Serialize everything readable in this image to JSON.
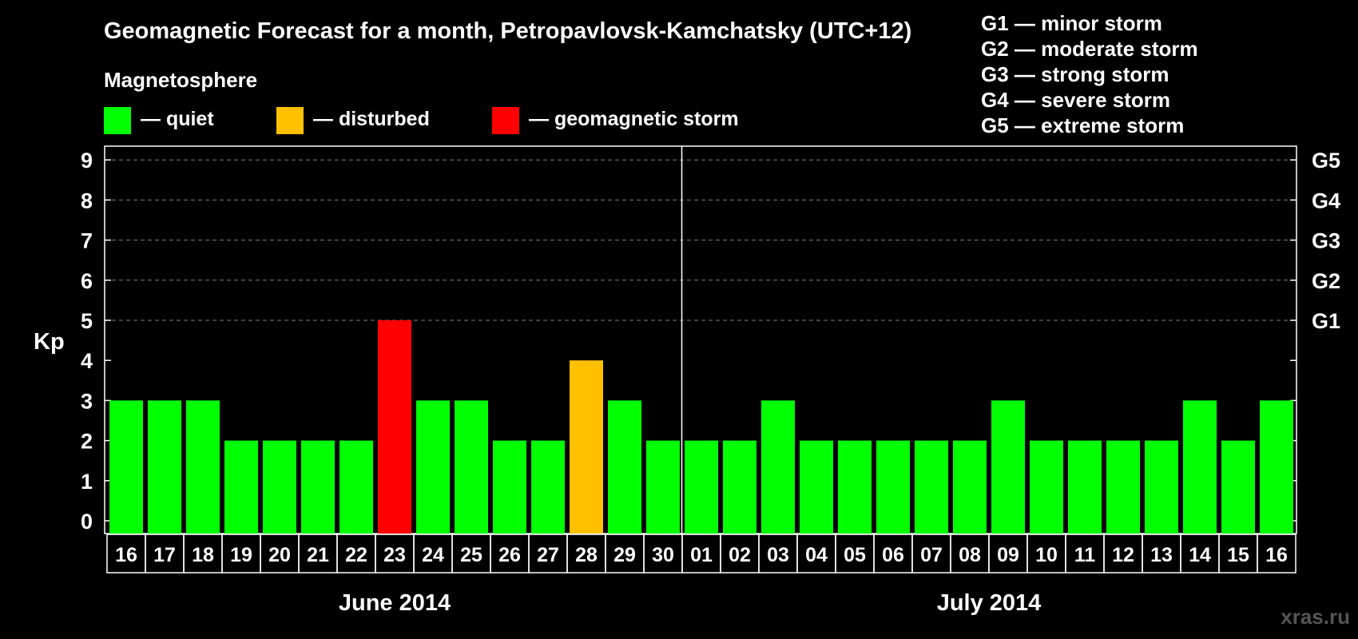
{
  "chart_data": {
    "type": "bar",
    "title": "Geomagnetic Forecast for a month, Petropavlovsk-Kamchatsky (UTC+12)",
    "legend_title": "Magnetosphere",
    "legend": [
      {
        "label": "— quiet",
        "color": "#00ff00"
      },
      {
        "label": "— disturbed",
        "color": "#ffc000"
      },
      {
        "label": "— geomagnetic storm",
        "color": "#ff0000"
      }
    ],
    "storm_scale": [
      "G1 — minor storm",
      "G2 — moderate storm",
      "G3 — strong storm",
      "G4 — severe storm",
      "G5 — extreme storm"
    ],
    "ylabel": "Kp",
    "ylim": [
      0,
      9
    ],
    "yticks": [
      "0",
      "1",
      "2",
      "3",
      "4",
      "5",
      "6",
      "7",
      "8",
      "9"
    ],
    "right_ticks": [
      {
        "value": 5,
        "label": "G1"
      },
      {
        "value": 6,
        "label": "G2"
      },
      {
        "value": 7,
        "label": "G3"
      },
      {
        "value": 8,
        "label": "G4"
      },
      {
        "value": 9,
        "label": "G5"
      }
    ],
    "categories": [
      "16",
      "17",
      "18",
      "19",
      "20",
      "21",
      "22",
      "23",
      "24",
      "25",
      "26",
      "27",
      "28",
      "29",
      "30",
      "01",
      "02",
      "03",
      "04",
      "05",
      "06",
      "07",
      "08",
      "09",
      "10",
      "11",
      "12",
      "13",
      "14",
      "15",
      "16"
    ],
    "values": [
      3,
      3,
      3,
      2,
      2,
      2,
      2,
      5,
      3,
      3,
      2,
      2,
      4,
      3,
      2,
      2,
      2,
      3,
      2,
      2,
      2,
      2,
      2,
      3,
      2,
      2,
      2,
      2,
      3,
      2,
      3
    ],
    "bar_colors": [
      "#00ff00",
      "#00ff00",
      "#00ff00",
      "#00ff00",
      "#00ff00",
      "#00ff00",
      "#00ff00",
      "#ff0000",
      "#00ff00",
      "#00ff00",
      "#00ff00",
      "#00ff00",
      "#ffc000",
      "#00ff00",
      "#00ff00",
      "#00ff00",
      "#00ff00",
      "#00ff00",
      "#00ff00",
      "#00ff00",
      "#00ff00",
      "#00ff00",
      "#00ff00",
      "#00ff00",
      "#00ff00",
      "#00ff00",
      "#00ff00",
      "#00ff00",
      "#00ff00",
      "#00ff00",
      "#00ff00"
    ],
    "months": [
      {
        "label": "June 2014",
        "first_index": 0,
        "last_index": 14
      },
      {
        "label": "July 2014",
        "first_index": 15,
        "last_index": 30
      }
    ],
    "grid": "dashed horizontal",
    "credit": "xras.ru"
  }
}
